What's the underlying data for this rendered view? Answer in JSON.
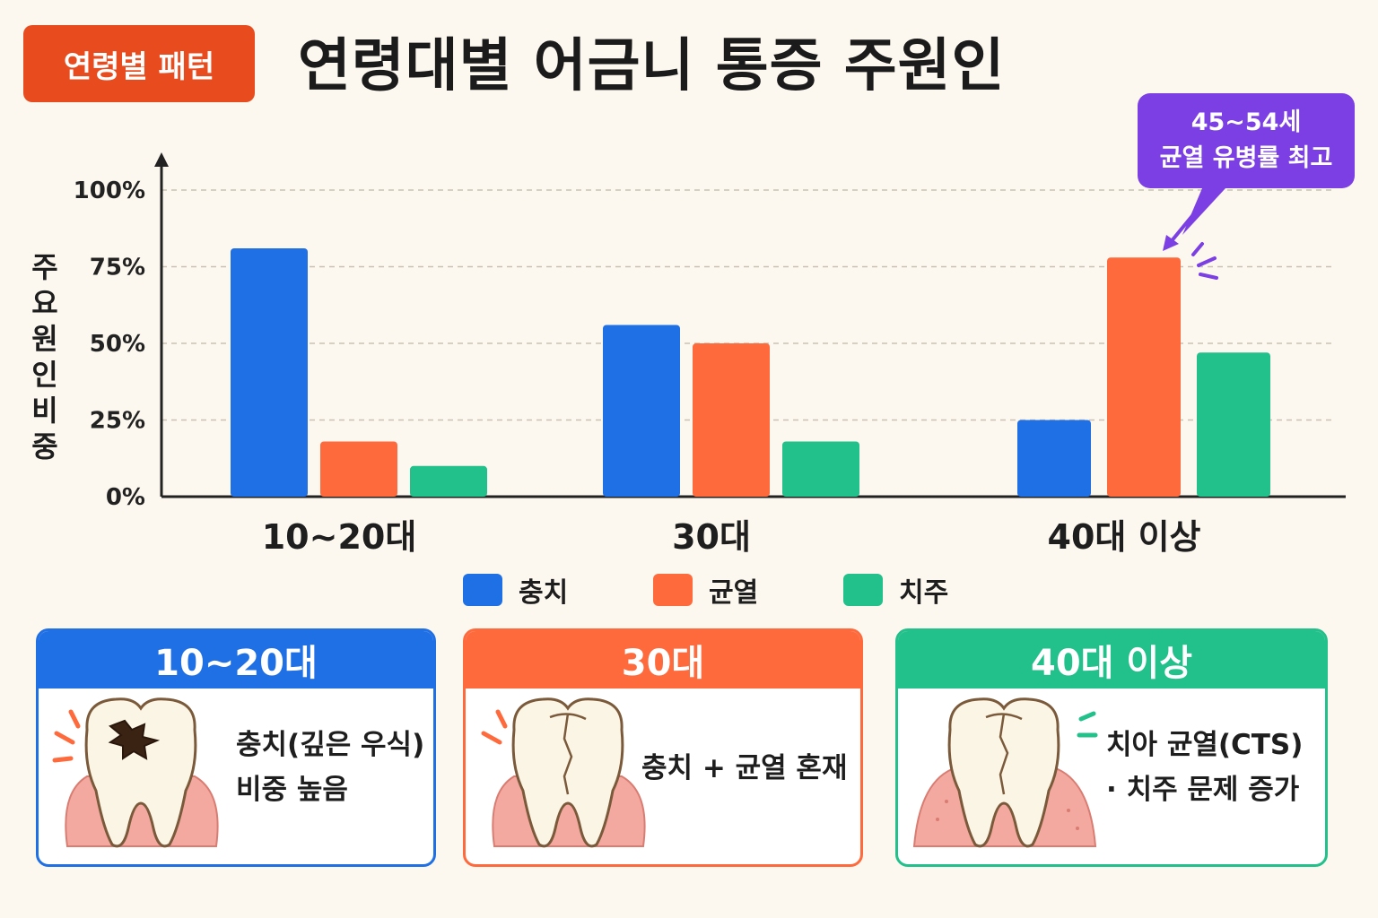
{
  "badge": "연령별 패턴",
  "title": "연령대별 어금니 통증 주원인",
  "callout": {
    "line1": "45~54세",
    "line2": "균열 유병률 최고"
  },
  "colors": {
    "caries": "#1f6fe5",
    "crack": "#ff6a3d",
    "periodontal": "#22c08b",
    "callout": "#7b3fe4",
    "badge": "#e84c1e"
  },
  "chart_data": {
    "type": "bar",
    "title": "연령대별 어금니 통증 주원인",
    "ylabel": "주요원인 비중",
    "xlabel": "",
    "categories": [
      "10~20대",
      "30대",
      "40대 이상"
    ],
    "series": [
      {
        "name": "충치",
        "values": [
          81,
          56,
          25
        ]
      },
      {
        "name": "균열",
        "values": [
          18,
          50,
          78
        ]
      },
      {
        "name": "치주",
        "values": [
          10,
          18,
          47
        ]
      }
    ],
    "ylim": [
      0,
      100
    ],
    "yticks": [
      "0%",
      "25%",
      "50%",
      "75%",
      "100%"
    ],
    "grid": true,
    "legend": "bottom"
  },
  "cards": [
    {
      "header": "10~20대",
      "lines": [
        "충치(깊은 우식)",
        "비중 높음"
      ],
      "icon": "decayed-tooth-icon"
    },
    {
      "header": "30대",
      "lines": [
        "충치 + 균열 혼재"
      ],
      "icon": "cracked-tooth-icon"
    },
    {
      "header": "40대 이상",
      "lines": [
        "치아 균열(CTS)",
        "· 치주 문제 증가"
      ],
      "icon": "cracked-tooth-gum-icon"
    }
  ]
}
